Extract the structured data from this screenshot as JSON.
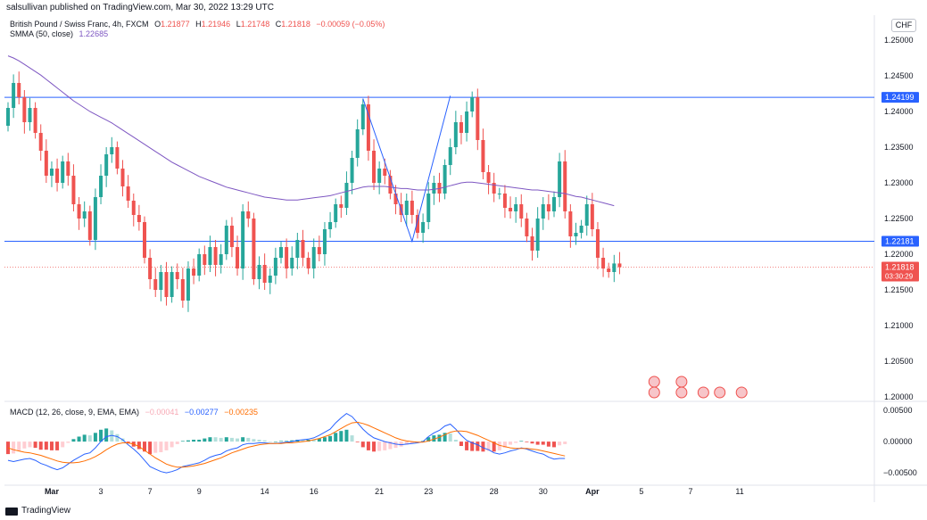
{
  "header": {
    "published": "salsullivan published on TradingView.com, Mar 30, 2022 13:29 UTC"
  },
  "legend": {
    "symbol": "British Pound / Swiss Franc, 4h, FXCM",
    "o_label": "O",
    "o": "1.21877",
    "h_label": "H",
    "h": "1.21946",
    "l_label": "L",
    "l": "1.21748",
    "c_label": "C",
    "c": "1.21818",
    "change": "−0.00059 (−0.05%)",
    "smma_label": "SMMA (50, close)",
    "smma_value": "1.22685"
  },
  "macd_legend": {
    "label": "MACD (12, 26, close, 9, EMA, EMA)",
    "hist": "−0.00041",
    "macd": "−0.00277",
    "signal": "−0.00235"
  },
  "currency_button": "CHF",
  "footer": {
    "brand": "TradingView"
  },
  "colors": {
    "up": "#26a69a",
    "down": "#ef5350",
    "smma": "#7e57c2",
    "hline": "#2962ff",
    "macd": "#2962ff",
    "signal": "#ff6d00"
  },
  "chart_data": [
    {
      "type": "candlestick",
      "symbol": "GBPCHF",
      "timeframe": "4h",
      "y_ticks": [
        "1.25000",
        "1.24500",
        "1.24000",
        "1.23500",
        "1.23000",
        "1.22500",
        "1.22000",
        "1.21500",
        "1.21000",
        "1.20500",
        "1.20000"
      ],
      "ylim": [
        1.1995,
        1.2535
      ],
      "x_ticks": [
        {
          "label": "Mar",
          "bar": 8
        },
        {
          "label": "3",
          "bar": 17
        },
        {
          "label": "7",
          "bar": 26
        },
        {
          "label": "9",
          "bar": 35
        },
        {
          "label": "14",
          "bar": 47
        },
        {
          "label": "16",
          "bar": 56
        },
        {
          "label": "21",
          "bar": 68
        },
        {
          "label": "23",
          "bar": 77
        },
        {
          "label": "28",
          "bar": 89
        },
        {
          "label": "30",
          "bar": 98
        },
        {
          "label": "Apr",
          "bar": 107
        },
        {
          "label": "5",
          "bar": 116
        },
        {
          "label": "7",
          "bar": 125
        },
        {
          "label": "11",
          "bar": 134
        }
      ],
      "bars_total": 140,
      "close": [
        1.2405,
        1.244,
        1.242,
        1.2385,
        1.2405,
        1.237,
        1.2345,
        1.231,
        1.232,
        1.23,
        1.233,
        1.231,
        1.227,
        1.225,
        1.226,
        1.222,
        1.228,
        1.231,
        1.234,
        1.235,
        1.232,
        1.2295,
        1.2275,
        1.2255,
        1.2245,
        1.2195,
        1.2165,
        1.215,
        1.2175,
        1.214,
        1.2175,
        1.2165,
        1.2135,
        1.218,
        1.217,
        1.22,
        1.2185,
        1.221,
        1.2185,
        1.22,
        1.224,
        1.221,
        1.218,
        1.226,
        1.225,
        1.2165,
        1.2185,
        1.216,
        1.217,
        1.2195,
        1.221,
        1.218,
        1.2195,
        1.222,
        1.2195,
        1.218,
        1.221,
        1.22,
        1.2235,
        1.2245,
        1.227,
        1.2265,
        1.23,
        1.2335,
        1.2375,
        1.241,
        1.2345,
        1.23,
        1.232,
        1.231,
        1.2285,
        1.227,
        1.2255,
        1.2275,
        1.2255,
        1.223,
        1.2245,
        1.2285,
        1.23,
        1.2285,
        1.2325,
        1.235,
        1.2385,
        1.237,
        1.24,
        1.242,
        1.236,
        1.2315,
        1.23,
        1.2285,
        1.2285,
        1.2265,
        1.226,
        1.227,
        1.225,
        1.2225,
        1.2205,
        1.225,
        1.227,
        1.226,
        1.228,
        1.233,
        1.226,
        1.2225,
        1.223,
        1.224,
        1.227,
        1.2235,
        1.2195,
        1.218,
        1.2175,
        1.2187,
        1.2182
      ],
      "open": [
        1.238,
        1.2405,
        1.244,
        1.242,
        1.2385,
        1.2405,
        1.237,
        1.2345,
        1.231,
        1.232,
        1.23,
        1.233,
        1.231,
        1.227,
        1.225,
        1.226,
        1.222,
        1.228,
        1.231,
        1.234,
        1.235,
        1.232,
        1.2295,
        1.2275,
        1.2255,
        1.2245,
        1.2195,
        1.2165,
        1.215,
        1.2175,
        1.214,
        1.2175,
        1.2165,
        1.2135,
        1.218,
        1.217,
        1.22,
        1.2185,
        1.221,
        1.2185,
        1.22,
        1.224,
        1.221,
        1.218,
        1.226,
        1.225,
        1.2165,
        1.2185,
        1.216,
        1.217,
        1.2195,
        1.221,
        1.218,
        1.2195,
        1.222,
        1.2195,
        1.218,
        1.221,
        1.22,
        1.2235,
        1.2245,
        1.227,
        1.2265,
        1.23,
        1.2335,
        1.2375,
        1.241,
        1.2345,
        1.23,
        1.232,
        1.231,
        1.2285,
        1.227,
        1.2255,
        1.2275,
        1.2255,
        1.223,
        1.2245,
        1.2285,
        1.23,
        1.2285,
        1.2325,
        1.235,
        1.2385,
        1.237,
        1.24,
        1.242,
        1.236,
        1.2315,
        1.23,
        1.2285,
        1.2285,
        1.2265,
        1.226,
        1.227,
        1.225,
        1.2225,
        1.2205,
        1.225,
        1.227,
        1.226,
        1.228,
        1.233,
        1.226,
        1.2225,
        1.223,
        1.224,
        1.227,
        1.2235,
        1.2195,
        1.218,
        1.2175,
        1.2187
      ],
      "smma": [
        1.2478,
        1.2475,
        1.2471,
        1.2466,
        1.2461,
        1.2456,
        1.2451,
        1.2445,
        1.2439,
        1.2433,
        1.2427,
        1.2421,
        1.2415,
        1.241,
        1.2405,
        1.24,
        1.2396,
        1.2392,
        1.2388,
        1.2384,
        1.2379,
        1.2374,
        1.2369,
        1.2364,
        1.2359,
        1.2354,
        1.2349,
        1.2344,
        1.2339,
        1.2334,
        1.2329,
        1.2325,
        1.2321,
        1.2317,
        1.2313,
        1.2309,
        1.2306,
        1.2303,
        1.23,
        1.2297,
        1.2294,
        1.2292,
        1.229,
        1.2288,
        1.2286,
        1.2284,
        1.2282,
        1.228,
        1.2279,
        1.2278,
        1.2277,
        1.2276,
        1.2276,
        1.2276,
        1.2277,
        1.2278,
        1.2279,
        1.228,
        1.2281,
        1.2282,
        1.2284,
        1.2286,
        1.2288,
        1.229,
        1.2292,
        1.2294,
        1.2295,
        1.2295,
        1.2295,
        1.2295,
        1.2294,
        1.2293,
        1.2292,
        1.2292,
        1.2291,
        1.229,
        1.229,
        1.229,
        1.2291,
        1.2292,
        1.2294,
        1.2296,
        1.2298,
        1.23,
        1.2301,
        1.2301,
        1.23,
        1.2299,
        1.2298,
        1.2297,
        1.2296,
        1.2295,
        1.2294,
        1.2293,
        1.2292,
        1.2291,
        1.229,
        1.229,
        1.2289,
        1.2288,
        1.2287,
        1.2286,
        1.2285,
        1.2283,
        1.2281,
        1.228,
        1.2278,
        1.2276,
        1.2274,
        1.2272,
        1.227,
        1.2268
      ],
      "horizontal_lines": [
        {
          "price": 1.24199,
          "label": "1.24199",
          "color": "#2962ff"
        },
        {
          "price": 1.22181,
          "label": "1.22181",
          "color": "#2962ff"
        }
      ],
      "last_price": {
        "price": 1.21818,
        "label": "1.21818",
        "countdown": "03:30:29",
        "color": "#ef5350"
      },
      "double_top_pattern": [
        {
          "bar": 65,
          "price": 1.2418
        },
        {
          "bar": 74,
          "price": 1.2218
        },
        {
          "bar": 81,
          "price": 1.2422
        }
      ]
    },
    {
      "type": "macd",
      "y_ticks": [
        "0.00500",
        "0.00000",
        "−0.00500"
      ],
      "ylim": [
        -0.0067,
        0.0063
      ],
      "macd": [
        -0.003,
        -0.0032,
        -0.003,
        -0.0028,
        -0.0027,
        -0.003,
        -0.0035,
        -0.0038,
        -0.0042,
        -0.0045,
        -0.0042,
        -0.0036,
        -0.003,
        -0.0025,
        -0.002,
        -0.0018,
        -0.001,
        0.0,
        0.0008,
        0.001,
        0.0008,
        0.0003,
        -0.0005,
        -0.0012,
        -0.002,
        -0.003,
        -0.004,
        -0.0044,
        -0.0048,
        -0.005,
        -0.0048,
        -0.0045,
        -0.004,
        -0.0038,
        -0.0036,
        -0.0034,
        -0.003,
        -0.0025,
        -0.0022,
        -0.002,
        -0.0015,
        -0.0012,
        -0.001,
        -0.0005,
        -0.0003,
        -0.0003,
        -0.0002,
        -0.0002,
        -0.0003,
        -0.0003,
        -0.0002,
        -0.0001,
        0.0,
        0.0002,
        0.0003,
        0.0004,
        0.0006,
        0.001,
        0.0015,
        0.002,
        0.003,
        0.0038,
        0.0045,
        0.004,
        0.003,
        0.002,
        0.0012,
        0.0006,
        0.0003,
        0.0,
        -0.0002,
        -0.0004,
        -0.0005,
        -0.0004,
        -0.0003,
        -0.0002,
        0.0,
        0.0008,
        0.0014,
        0.0018,
        0.0025,
        0.0028,
        0.002,
        0.001,
        0.0002,
        -0.0002,
        -0.0005,
        -0.001,
        -0.0013,
        -0.0018,
        -0.002,
        -0.0018,
        -0.0015,
        -0.0013,
        -0.001,
        -0.0012,
        -0.0015,
        -0.0018,
        -0.002,
        -0.0025,
        -0.0028,
        -0.0027,
        -0.0027
      ],
      "signal": [
        -0.001,
        -0.0013,
        -0.0015,
        -0.0017,
        -0.0018,
        -0.002,
        -0.0022,
        -0.0025,
        -0.0028,
        -0.0031,
        -0.0033,
        -0.0034,
        -0.0034,
        -0.0033,
        -0.0031,
        -0.0028,
        -0.0024,
        -0.0019,
        -0.0013,
        -0.0008,
        -0.0004,
        -0.0002,
        -0.0002,
        -0.0004,
        -0.0008,
        -0.0014,
        -0.002,
        -0.0026,
        -0.0031,
        -0.0036,
        -0.0039,
        -0.0041,
        -0.0041,
        -0.004,
        -0.0039,
        -0.0037,
        -0.0035,
        -0.0032,
        -0.0029,
        -0.0026,
        -0.0022,
        -0.0018,
        -0.0015,
        -0.0012,
        -0.0009,
        -0.0007,
        -0.0005,
        -0.0004,
        -0.0003,
        -0.0003,
        -0.0003,
        -0.0002,
        -0.0002,
        -0.0001,
        0.0,
        0.0001,
        0.0003,
        0.0005,
        0.0008,
        0.0011,
        0.0016,
        0.0021,
        0.0026,
        0.003,
        0.0031,
        0.0029,
        0.0026,
        0.0022,
        0.0018,
        0.0014,
        0.001,
        0.0006,
        0.0003,
        0.0001,
        0.0,
        -0.0001,
        -0.0001,
        0.0001,
        0.0004,
        0.0007,
        0.0011,
        0.0015,
        0.0017,
        0.0017,
        0.0016,
        0.0013,
        0.001,
        0.0006,
        0.0002,
        -0.0002,
        -0.0006,
        -0.0008,
        -0.001,
        -0.0011,
        -0.0011,
        -0.0011,
        -0.0012,
        -0.0013,
        -0.0015,
        -0.0017,
        -0.0019,
        -0.0021,
        -0.0023
      ]
    }
  ]
}
